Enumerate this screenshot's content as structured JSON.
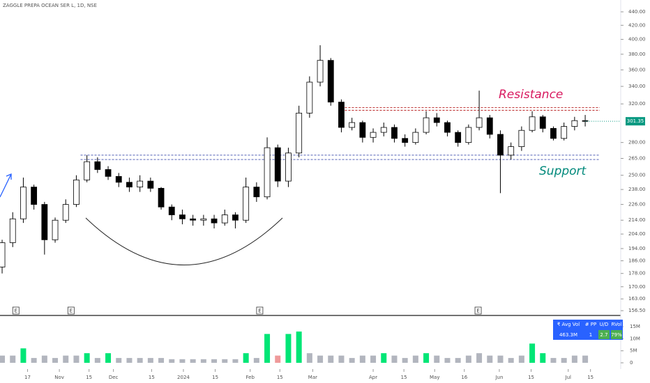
{
  "chart_data": [
    {
      "type": "candlestick",
      "title": "ZAGGLE PREPA OCEAN SER L, 1D, NSE",
      "log_scale": true,
      "up_color": "#ffffff",
      "down_color": "#000000",
      "edge_color": "#000000",
      "x": [
        0,
        1,
        2,
        3,
        4,
        5,
        6,
        7,
        8,
        9,
        10,
        11,
        12,
        13,
        14,
        15,
        16,
        17,
        18,
        19,
        20,
        21,
        22,
        23,
        24,
        25,
        26,
        27,
        28,
        29,
        30,
        31,
        32,
        33,
        34,
        35,
        36,
        37,
        38,
        39,
        40,
        41,
        42,
        43,
        44,
        45,
        46,
        47,
        48,
        49,
        50,
        51,
        52,
        53,
        54,
        55
      ],
      "open": [
        182,
        198,
        215,
        240,
        226,
        200,
        214,
        226,
        246,
        262,
        255,
        249,
        244,
        240,
        245,
        239,
        224,
        218,
        215,
        214,
        215,
        212,
        218,
        214,
        240,
        232,
        275,
        245,
        270,
        310,
        345,
        372,
        322,
        295,
        300,
        285,
        290,
        295,
        284,
        280,
        290,
        305,
        300,
        290,
        280,
        295,
        305,
        288,
        268,
        276,
        292,
        306,
        294,
        284,
        296,
        302
      ],
      "high": [
        200,
        220,
        248,
        242,
        228,
        216,
        230,
        250,
        268,
        266,
        258,
        252,
        248,
        250,
        248,
        240,
        226,
        222,
        218,
        218,
        218,
        222,
        220,
        248,
        244,
        285,
        278,
        275,
        318,
        352,
        392,
        375,
        325,
        305,
        302,
        294,
        300,
        298,
        288,
        294,
        312,
        310,
        302,
        292,
        298,
        335,
        308,
        292,
        280,
        296,
        312,
        308,
        296,
        300,
        306,
        308
      ],
      "low": [
        178,
        195,
        212,
        222,
        190,
        198,
        212,
        224,
        244,
        252,
        246,
        240,
        236,
        236,
        236,
        222,
        214,
        211,
        210,
        210,
        208,
        210,
        208,
        212,
        228,
        230,
        240,
        240,
        266,
        305,
        340,
        318,
        290,
        292,
        280,
        280,
        286,
        280,
        276,
        278,
        288,
        296,
        286,
        276,
        278,
        292,
        284,
        235,
        264,
        272,
        290,
        290,
        282,
        282,
        292,
        296
      ],
      "close": [
        198,
        215,
        240,
        226,
        200,
        214,
        226,
        246,
        262,
        255,
        249,
        244,
        240,
        245,
        239,
        224,
        218,
        215,
        214,
        215,
        212,
        218,
        214,
        240,
        232,
        275,
        245,
        270,
        310,
        345,
        372,
        322,
        295,
        300,
        285,
        290,
        295,
        284,
        280,
        290,
        305,
        300,
        290,
        280,
        295,
        305,
        288,
        268,
        276,
        292,
        306,
        294,
        284,
        296,
        302,
        301.35
      ],
      "last_price_color": "#089981",
      "xlim": [
        -0.2,
        58.35
      ],
      "ylim": [
        154.3,
        458.4
      ],
      "yticks": [
        {
          "value": 440,
          "label": "440.00"
        },
        {
          "value": 420,
          "label": "420.00"
        },
        {
          "value": 400,
          "label": "400.00"
        },
        {
          "value": 380,
          "label": "380.00"
        },
        {
          "value": 360,
          "label": "360.00"
        },
        {
          "value": 340,
          "label": "340.00"
        },
        {
          "value": 320,
          "label": "320.00"
        },
        {
          "value": 280,
          "label": "280.00"
        },
        {
          "value": 265,
          "label": "265.00"
        },
        {
          "value": 250,
          "label": "250.00"
        },
        {
          "value": 238,
          "label": "238.00"
        },
        {
          "value": 226,
          "label": "226.00"
        },
        {
          "value": 214,
          "label": "214.00"
        },
        {
          "value": 204,
          "label": "204.00"
        },
        {
          "value": 194,
          "label": "194.00"
        },
        {
          "value": 186,
          "label": "186.00"
        },
        {
          "value": 178,
          "label": "178.00"
        },
        {
          "value": 170,
          "label": "170.00"
        },
        {
          "value": 163,
          "label": "163.00"
        },
        {
          "value": 156.5,
          "label": "156.50"
        }
      ],
      "xticks": [
        {
          "value": 2.4,
          "label": "17"
        },
        {
          "value": 5.4,
          "label": "Nov"
        },
        {
          "value": 8.2,
          "label": "15"
        },
        {
          "value": 10.5,
          "label": "Dec"
        },
        {
          "value": 14.1,
          "label": "15"
        },
        {
          "value": 17.1,
          "label": "2024"
        },
        {
          "value": 20.1,
          "label": "15"
        },
        {
          "value": 23.4,
          "label": "Feb"
        },
        {
          "value": 26.2,
          "label": "15"
        },
        {
          "value": 29.3,
          "label": "Mar"
        },
        {
          "value": 35.0,
          "label": "Apr"
        },
        {
          "value": 37.9,
          "label": "15"
        },
        {
          "value": 40.8,
          "label": "May"
        },
        {
          "value": 43.6,
          "label": "16"
        },
        {
          "value": 46.9,
          "label": "Jun"
        },
        {
          "value": 49.9,
          "label": "15"
        },
        {
          "value": 53.4,
          "label": "Jul"
        },
        {
          "value": 55.5,
          "label": "15"
        }
      ],
      "earnings": [
        {
          "x": 1.3,
          "label": "E"
        },
        {
          "x": 6.5,
          "label": "E"
        },
        {
          "x": 24.3,
          "label": "E"
        },
        {
          "x": 44.9,
          "label": "E"
        }
      ],
      "resistance": {
        "label": "Resistance",
        "color": "#d81b60",
        "line_color": "#b71c1c",
        "levels": [
          316,
          313
        ]
      },
      "support": {
        "label": "Support",
        "color": "#00897b",
        "line_color": "#3949ab",
        "levels": [
          268,
          264
        ]
      }
    },
    {
      "type": "bar",
      "x": [
        0,
        1,
        2,
        3,
        4,
        5,
        6,
        7,
        8,
        9,
        10,
        11,
        12,
        13,
        14,
        15,
        16,
        17,
        18,
        19,
        20,
        21,
        22,
        23,
        24,
        25,
        26,
        27,
        28,
        29,
        30,
        31,
        32,
        33,
        34,
        35,
        36,
        37,
        38,
        39,
        40,
        41,
        42,
        43,
        44,
        45,
        46,
        47,
        48,
        49,
        50,
        51,
        52,
        53,
        54,
        55
      ],
      "values": [
        3,
        3,
        6,
        2,
        3,
        2,
        3,
        3,
        4,
        2,
        4,
        2,
        2,
        2,
        2,
        2,
        1.5,
        1.5,
        1.5,
        1.5,
        1.5,
        1.5,
        1.5,
        4,
        2,
        12,
        3,
        12,
        13,
        4,
        3,
        3,
        3,
        2,
        3,
        3,
        4,
        3,
        2,
        3,
        4,
        3,
        2,
        2,
        3,
        4,
        3,
        3,
        2,
        3,
        8,
        4,
        2,
        2,
        3,
        3
      ],
      "colors": [
        "#b2b5be",
        "#b2b5be",
        "#00e676",
        "#b2b5be",
        "#b2b5be",
        "#b2b5be",
        "#b2b5be",
        "#b2b5be",
        "#00e676",
        "#b2b5be",
        "#00e676",
        "#b2b5be",
        "#b2b5be",
        "#b2b5be",
        "#b2b5be",
        "#b2b5be",
        "#b2b5be",
        "#b2b5be",
        "#b2b5be",
        "#b2b5be",
        "#b2b5be",
        "#b2b5be",
        "#b2b5be",
        "#00e676",
        "#b2b5be",
        "#00e676",
        "#ef9a9a",
        "#00e676",
        "#00e676",
        "#b2b5be",
        "#b2b5be",
        "#b2b5be",
        "#b2b5be",
        "#b2b5be",
        "#b2b5be",
        "#b2b5be",
        "#00e676",
        "#b2b5be",
        "#b2b5be",
        "#b2b5be",
        "#00e676",
        "#b2b5be",
        "#b2b5be",
        "#b2b5be",
        "#b2b5be",
        "#b2b5be",
        "#b2b5be",
        "#b2b5be",
        "#b2b5be",
        "#b2b5be",
        "#00e676",
        "#00e676",
        "#b2b5be",
        "#b2b5be",
        "#b2b5be",
        "#b2b5be"
      ],
      "ylim": [
        0,
        16.8
      ],
      "yticks": [
        {
          "value": 15,
          "label": "15M"
        },
        {
          "value": 10,
          "label": "10M"
        },
        {
          "value": 5,
          "label": "5M"
        },
        0
      ],
      "stats_table": {
        "headers": [
          "₹ Avg Vol",
          "# PP",
          "U/D",
          "RVol"
        ],
        "row": [
          "463.3M",
          "1",
          "2.7",
          "79%"
        ]
      }
    }
  ]
}
